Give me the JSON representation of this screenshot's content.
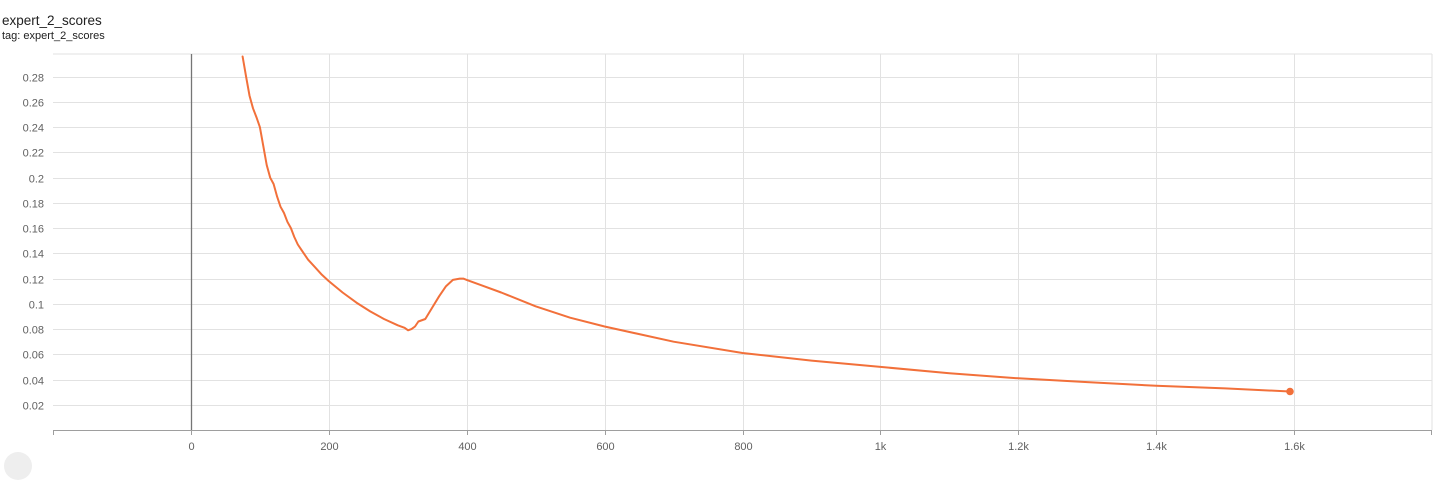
{
  "header": {
    "title": "expert_2_scores",
    "subtitle": "tag: expert_2_scores"
  },
  "colors": {
    "line": "#f2703a",
    "grid": "#e2e2e2",
    "axis": "#9e9e9e",
    "zero_line": "#757575"
  },
  "chart_data": {
    "type": "line",
    "title": "expert_2_scores",
    "xlabel": "",
    "ylabel": "",
    "xlim": [
      -200,
      1800
    ],
    "ylim": [
      0,
      0.298
    ],
    "grid": true,
    "xticks": [
      {
        "value": 0,
        "label": "0"
      },
      {
        "value": 200,
        "label": "200"
      },
      {
        "value": 400,
        "label": "400"
      },
      {
        "value": 600,
        "label": "600"
      },
      {
        "value": 800,
        "label": "800"
      },
      {
        "value": 1000,
        "label": "1k"
      },
      {
        "value": 1200,
        "label": "1.2k"
      },
      {
        "value": 1400,
        "label": "1.4k"
      },
      {
        "value": 1600,
        "label": "1.6k"
      }
    ],
    "yticks": [
      {
        "value": 0.02,
        "label": "0.02"
      },
      {
        "value": 0.04,
        "label": "0.04"
      },
      {
        "value": 0.06,
        "label": "0.06"
      },
      {
        "value": 0.08,
        "label": "0.08"
      },
      {
        "value": 0.1,
        "label": "0.1"
      },
      {
        "value": 0.12,
        "label": "0.12"
      },
      {
        "value": 0.14,
        "label": "0.14"
      },
      {
        "value": 0.16,
        "label": "0.16"
      },
      {
        "value": 0.18,
        "label": "0.18"
      },
      {
        "value": 0.2,
        "label": "0.2"
      },
      {
        "value": 0.22,
        "label": "0.22"
      },
      {
        "value": 0.24,
        "label": "0.24"
      },
      {
        "value": 0.26,
        "label": "0.26"
      },
      {
        "value": 0.28,
        "label": "0.28"
      }
    ],
    "series": [
      {
        "x": [
          75,
          80,
          85,
          90,
          95,
          100,
          105,
          110,
          115,
          120,
          125,
          130,
          135,
          140,
          145,
          150,
          155,
          160,
          170,
          180,
          190,
          200,
          220,
          240,
          260,
          280,
          300,
          310,
          315,
          320,
          325,
          330,
          340,
          350,
          360,
          370,
          380,
          390,
          395,
          400,
          420,
          450,
          500,
          550,
          600,
          700,
          800,
          900,
          1000,
          1100,
          1200,
          1300,
          1400,
          1500,
          1594
        ],
        "y": [
          0.296,
          0.28,
          0.265,
          0.255,
          0.248,
          0.24,
          0.225,
          0.21,
          0.2,
          0.195,
          0.185,
          0.177,
          0.172,
          0.165,
          0.16,
          0.153,
          0.147,
          0.143,
          0.135,
          0.129,
          0.123,
          0.118,
          0.109,
          0.101,
          0.094,
          0.088,
          0.083,
          0.081,
          0.079,
          0.08,
          0.082,
          0.086,
          0.088,
          0.097,
          0.106,
          0.114,
          0.119,
          0.12,
          0.12,
          0.119,
          0.115,
          0.109,
          0.098,
          0.089,
          0.082,
          0.07,
          0.061,
          0.055,
          0.05,
          0.045,
          0.041,
          0.038,
          0.035,
          0.033,
          0.0305
        ]
      }
    ]
  }
}
